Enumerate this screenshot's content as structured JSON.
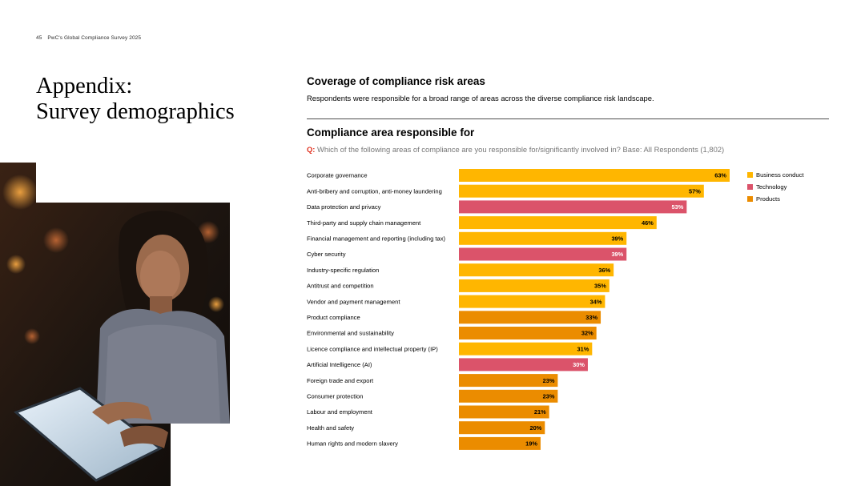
{
  "header": {
    "page_number": "45",
    "doc_title": "PwC's Global Compliance Survey 2025"
  },
  "title": {
    "line1": "Appendix:",
    "line2": "Survey demographics"
  },
  "section": {
    "heading": "Coverage of compliance risk areas",
    "description": "Respondents were responsible for a broad range of areas across the diverse compliance risk landscape."
  },
  "chart": {
    "heading": "Compliance area responsible for",
    "question_prefix": "Q:",
    "question": "Which of the following areas of compliance are you responsible for/significantly involved in? Base: All Respondents (1,802)"
  },
  "colors": {
    "Business conduct": "#FFB600",
    "Technology": "#DB536A",
    "Products": "#EB8C00"
  },
  "legend": [
    {
      "label": "Business conduct",
      "color": "#FFB600"
    },
    {
      "label": "Technology",
      "color": "#DB536A"
    },
    {
      "label": "Products",
      "color": "#EB8C00"
    }
  ],
  "chart_data": {
    "type": "bar",
    "orientation": "horizontal",
    "unit": "%",
    "xlim": [
      0,
      63
    ],
    "legend_position": "top-right",
    "grid": false,
    "categories": [
      "Corporate governance",
      "Anti-bribery and corruption, anti-money laundering",
      "Data protection and privacy",
      "Third-party and supply chain management",
      "Financial management and reporting (including tax)",
      "Cyber security",
      "Industry-specific regulation",
      "Antitrust and competition",
      "Vendor and payment management",
      "Product compliance",
      "Environmental and sustainability",
      "Licence compliance and intellectual property (IP)",
      "Artificial Intelligence (AI)",
      "Foreign trade and export",
      "Consumer protection",
      "Labour and employment",
      "Health and safety",
      "Human rights and modern slavery"
    ],
    "values": [
      63,
      57,
      53,
      46,
      39,
      39,
      36,
      35,
      34,
      33,
      32,
      31,
      30,
      23,
      23,
      21,
      20,
      19
    ],
    "groups": [
      "Business conduct",
      "Business conduct",
      "Technology",
      "Business conduct",
      "Business conduct",
      "Technology",
      "Business conduct",
      "Business conduct",
      "Business conduct",
      "Products",
      "Products",
      "Business conduct",
      "Technology",
      "Products",
      "Products",
      "Products",
      "Products",
      "Products"
    ],
    "value_labels": [
      "63%",
      "57%",
      "53%",
      "46%",
      "39%",
      "39%",
      "36%",
      "35%",
      "34%",
      "33%",
      "32%",
      "31%",
      "30%",
      "23%",
      "23%",
      "21%",
      "20%",
      "19%"
    ]
  }
}
